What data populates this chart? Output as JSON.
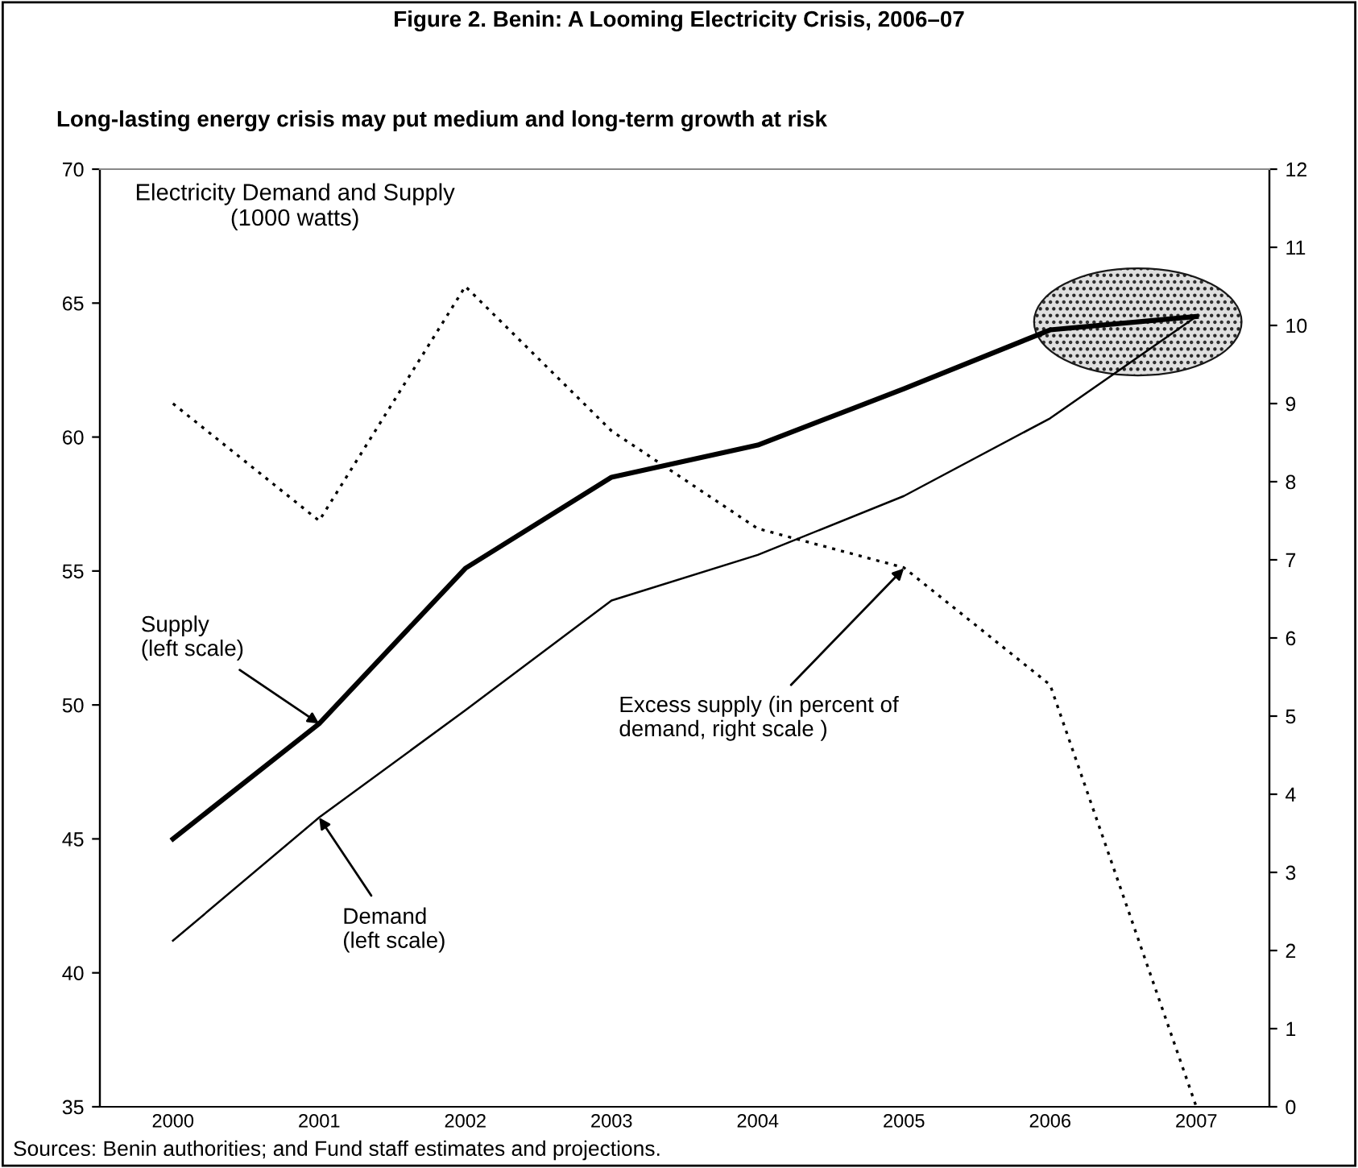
{
  "chart_data": {
    "type": "line",
    "title": "Figure 2. Benin: A Looming Electricity Crisis, 2006–07",
    "subtitle": "Long-lasting energy crisis may put medium and long-term growth at risk",
    "categories": [
      "2000",
      "2001",
      "2002",
      "2003",
      "2004",
      "2005",
      "2006",
      "2007"
    ],
    "series": [
      {
        "color": "#000000",
        "line_style": "solid",
        "values": [
          45.0,
          49.3,
          55.1,
          58.5,
          59.7,
          61.8,
          64.0,
          64.5
        ]
      },
      {
        "color": "#000000",
        "line_style": "solid",
        "values": [
          41.2,
          45.8,
          49.8,
          53.9,
          55.6,
          57.8,
          60.7,
          64.5
        ]
      },
      {
        "color": "#000000",
        "line_style": "dotted",
        "axis": "y2",
        "values": [
          9.0,
          7.5,
          10.5,
          8.65,
          7.4,
          6.9,
          5.4,
          0.0
        ]
      }
    ],
    "ylim": [
      35,
      70
    ],
    "yticks": [
      35,
      40,
      45,
      50,
      55,
      60,
      65,
      70
    ],
    "y2lim": [
      0,
      12
    ],
    "y2ticks": [
      0,
      1,
      2,
      3,
      4,
      5,
      6,
      7,
      8,
      9,
      10,
      11,
      12
    ],
    "annotations": [
      "Electricity Demand and Supply\n(1000 watts)",
      {
        "text": "Supply\n(left scale)",
        "x": "2001",
        "y": 49.3
      },
      {
        "text": "Demand\n(left scale)",
        "x": "2001",
        "y": 45.8
      },
      {
        "text": "Excess supply (in percent of\ndemand, right scale )",
        "x": "2005",
        "y": 55.1
      },
      "Sources: Benin authorities; and Fund staff estimates and projections."
    ],
    "grid": false,
    "marker": "none"
  }
}
